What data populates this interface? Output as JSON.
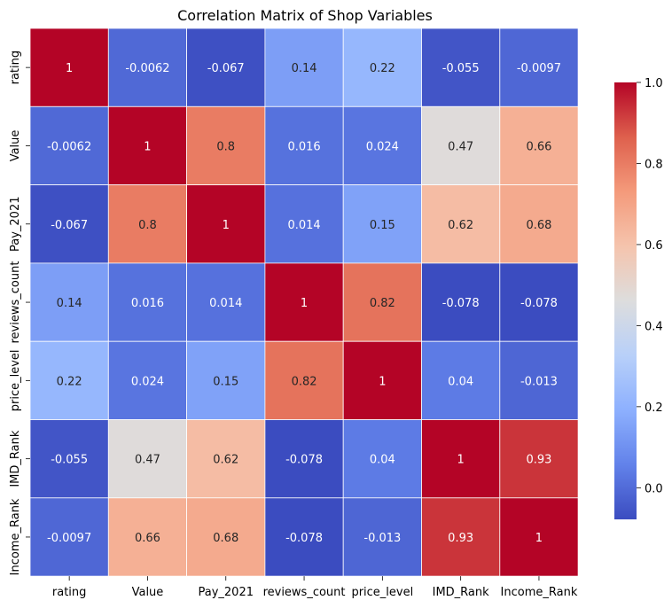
{
  "chart_data": {
    "type": "heatmap",
    "title": "Correlation Matrix of Shop Variables",
    "xlabel": "",
    "ylabel": "",
    "categories": [
      "rating",
      "Value",
      "Pay_2021",
      "reviews_count",
      "price_level",
      "IMD_Rank",
      "Income_Rank"
    ],
    "matrix": [
      [
        1,
        -0.0062,
        -0.067,
        0.14,
        0.22,
        -0.055,
        -0.0097
      ],
      [
        -0.0062,
        1,
        0.8,
        0.016,
        0.024,
        0.47,
        0.66
      ],
      [
        -0.067,
        0.8,
        1,
        0.014,
        0.15,
        0.62,
        0.68
      ],
      [
        0.14,
        0.016,
        0.014,
        1,
        0.82,
        -0.078,
        -0.078
      ],
      [
        0.22,
        0.024,
        0.15,
        0.82,
        1,
        0.04,
        -0.013
      ],
      [
        -0.055,
        0.47,
        0.62,
        -0.078,
        0.04,
        1,
        0.93
      ],
      [
        -0.0097,
        0.66,
        0.68,
        -0.078,
        -0.013,
        0.93,
        1
      ]
    ],
    "labels": [
      [
        "1",
        "-0.0062",
        "-0.067",
        "0.14",
        "0.22",
        "-0.055",
        "-0.0097"
      ],
      [
        "-0.0062",
        "1",
        "0.8",
        "0.016",
        "0.024",
        "0.47",
        "0.66"
      ],
      [
        "-0.067",
        "0.8",
        "1",
        "0.014",
        "0.15",
        "0.62",
        "0.68"
      ],
      [
        "0.14",
        "0.016",
        "0.014",
        "1",
        "0.82",
        "-0.078",
        "-0.078"
      ],
      [
        "0.22",
        "0.024",
        "0.15",
        "0.82",
        "1",
        "0.04",
        "-0.013"
      ],
      [
        "-0.055",
        "0.47",
        "0.62",
        "-0.078",
        "0.04",
        "1",
        "0.93"
      ],
      [
        "-0.0097",
        "0.66",
        "0.68",
        "-0.078",
        "-0.013",
        "0.93",
        "1"
      ]
    ],
    "colormap": "coolwarm",
    "vmin": -0.078,
    "vmax": 1.0,
    "colorbar_ticks": [
      0.0,
      0.2,
      0.4,
      0.6,
      0.8,
      1.0
    ],
    "colorbar_tick_labels": [
      "0.0",
      "0.2",
      "0.4",
      "0.6",
      "0.8",
      "1.0"
    ],
    "grid": false
  }
}
